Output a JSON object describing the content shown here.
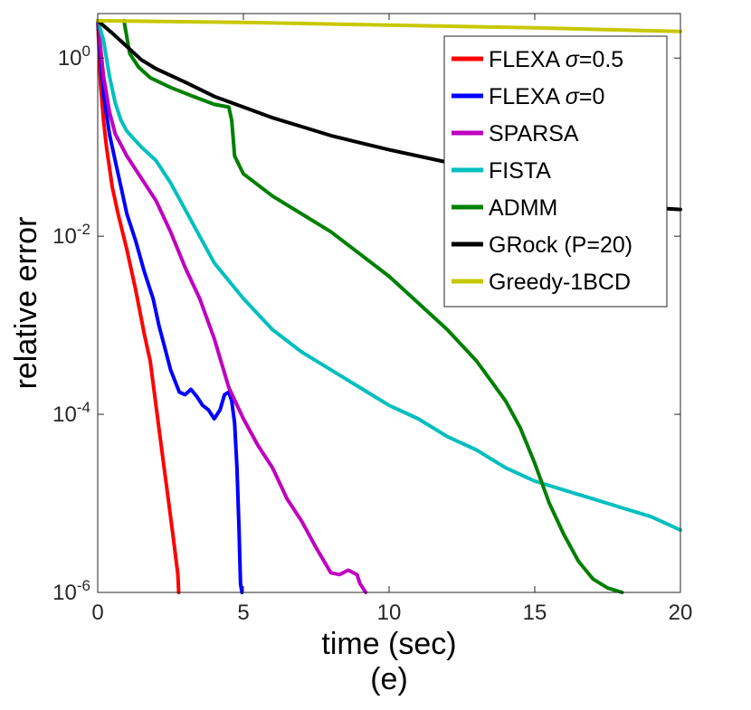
{
  "chart_data": {
    "type": "line",
    "subfigure_label": "(e)",
    "xlabel": "time (sec)",
    "ylabel": "relative error",
    "xlim": [
      0,
      20
    ],
    "ylim_log10": [
      -6,
      0.5
    ],
    "y_scale": "log",
    "x_ticks": [
      {
        "value": 0,
        "label": "0"
      },
      {
        "value": 5,
        "label": "5"
      },
      {
        "value": 10,
        "label": "10"
      },
      {
        "value": 15,
        "label": "15"
      },
      {
        "value": 20,
        "label": "20"
      }
    ],
    "y_ticks": [
      {
        "log10": 0,
        "base": "10",
        "exp": "0"
      },
      {
        "log10": -2,
        "base": "10",
        "exp": "-2"
      },
      {
        "log10": -4,
        "base": "10",
        "exp": "-4"
      },
      {
        "log10": -6,
        "base": "10",
        "exp": "-6"
      }
    ],
    "legend": {
      "position": "top-right"
    },
    "series": [
      {
        "name": "FLEXA σ=0.5",
        "name_prefix": "FLEXA ",
        "name_symbol": "σ",
        "name_suffix": "=0.5",
        "color": "#ff0000",
        "points": [
          [
            0,
            0.42
          ],
          [
            0.1,
            -0.3
          ],
          [
            0.2,
            -0.7
          ],
          [
            0.3,
            -1.0
          ],
          [
            0.5,
            -1.45
          ],
          [
            0.7,
            -1.75
          ],
          [
            1.0,
            -2.15
          ],
          [
            1.3,
            -2.6
          ],
          [
            1.6,
            -3.1
          ],
          [
            1.8,
            -3.4
          ],
          [
            2.0,
            -3.9
          ],
          [
            2.2,
            -4.4
          ],
          [
            2.4,
            -4.9
          ],
          [
            2.6,
            -5.4
          ],
          [
            2.75,
            -5.8
          ],
          [
            2.78,
            -6.0
          ]
        ]
      },
      {
        "name": "FLEXA σ=0",
        "name_prefix": "FLEXA ",
        "name_symbol": "σ",
        "name_suffix": "=0",
        "color": "#0000ff",
        "points": [
          [
            0,
            0.42
          ],
          [
            0.2,
            -0.4
          ],
          [
            0.4,
            -0.85
          ],
          [
            0.6,
            -1.15
          ],
          [
            0.8,
            -1.45
          ],
          [
            1.0,
            -1.75
          ],
          [
            1.3,
            -2.05
          ],
          [
            1.6,
            -2.4
          ],
          [
            1.9,
            -2.7
          ],
          [
            2.1,
            -3.0
          ],
          [
            2.3,
            -3.25
          ],
          [
            2.5,
            -3.5
          ],
          [
            2.8,
            -3.75
          ],
          [
            3.0,
            -3.78
          ],
          [
            3.2,
            -3.72
          ],
          [
            3.4,
            -3.8
          ],
          [
            3.6,
            -3.9
          ],
          [
            3.8,
            -3.95
          ],
          [
            4.0,
            -4.05
          ],
          [
            4.2,
            -3.95
          ],
          [
            4.35,
            -3.78
          ],
          [
            4.5,
            -3.75
          ],
          [
            4.6,
            -3.85
          ],
          [
            4.7,
            -4.1
          ],
          [
            4.78,
            -4.6
          ],
          [
            4.85,
            -5.3
          ],
          [
            4.9,
            -5.9
          ],
          [
            4.95,
            -6.0
          ]
        ]
      },
      {
        "name": "SPARSA",
        "name_prefix": "SPARSA",
        "name_symbol": "",
        "name_suffix": "",
        "color": "#bf00bf",
        "points": [
          [
            0,
            0.42
          ],
          [
            0.2,
            -0.2
          ],
          [
            0.4,
            -0.6
          ],
          [
            0.6,
            -0.85
          ],
          [
            1.0,
            -1.1
          ],
          [
            1.5,
            -1.35
          ],
          [
            2.0,
            -1.6
          ],
          [
            2.5,
            -1.95
          ],
          [
            3.0,
            -2.35
          ],
          [
            3.5,
            -2.7
          ],
          [
            4.0,
            -3.15
          ],
          [
            4.5,
            -3.7
          ],
          [
            5.0,
            -4.05
          ],
          [
            5.5,
            -4.35
          ],
          [
            6.0,
            -4.6
          ],
          [
            6.5,
            -4.95
          ],
          [
            7.0,
            -5.2
          ],
          [
            7.5,
            -5.5
          ],
          [
            8.0,
            -5.78
          ],
          [
            8.3,
            -5.8
          ],
          [
            8.6,
            -5.75
          ],
          [
            8.9,
            -5.8
          ],
          [
            9.0,
            -5.9
          ],
          [
            9.2,
            -6.0
          ]
        ]
      },
      {
        "name": "FISTA",
        "name_prefix": "FISTA",
        "name_symbol": "",
        "name_suffix": "",
        "color": "#00bfbf",
        "points": [
          [
            0,
            0.42
          ],
          [
            0.2,
            0.2
          ],
          [
            0.4,
            -0.2
          ],
          [
            0.6,
            -0.5
          ],
          [
            0.8,
            -0.7
          ],
          [
            1.0,
            -0.82
          ],
          [
            1.5,
            -1.0
          ],
          [
            2.0,
            -1.15
          ],
          [
            2.5,
            -1.4
          ],
          [
            3.0,
            -1.7
          ],
          [
            3.5,
            -2.0
          ],
          [
            4.0,
            -2.3
          ],
          [
            5.0,
            -2.7
          ],
          [
            6.0,
            -3.05
          ],
          [
            7.0,
            -3.3
          ],
          [
            8.0,
            -3.5
          ],
          [
            9.0,
            -3.7
          ],
          [
            10.0,
            -3.9
          ],
          [
            11.0,
            -4.05
          ],
          [
            12.0,
            -4.25
          ],
          [
            13.0,
            -4.4
          ],
          [
            14.0,
            -4.6
          ],
          [
            15.0,
            -4.75
          ],
          [
            16.0,
            -4.85
          ],
          [
            17.0,
            -4.95
          ],
          [
            18.0,
            -5.05
          ],
          [
            19.0,
            -5.15
          ],
          [
            20.0,
            -5.3
          ]
        ]
      },
      {
        "name": "ADMM",
        "name_prefix": "ADMM",
        "name_symbol": "",
        "name_suffix": "",
        "color": "#008000",
        "points": [
          [
            0.9,
            0.42
          ],
          [
            1.1,
            0.05
          ],
          [
            1.4,
            -0.1
          ],
          [
            1.8,
            -0.22
          ],
          [
            2.5,
            -0.33
          ],
          [
            3.2,
            -0.42
          ],
          [
            3.6,
            -0.47
          ],
          [
            4.0,
            -0.52
          ],
          [
            4.5,
            -0.55
          ],
          [
            4.6,
            -0.7
          ],
          [
            4.7,
            -1.1
          ],
          [
            5.0,
            -1.3
          ],
          [
            6.0,
            -1.55
          ],
          [
            7.0,
            -1.75
          ],
          [
            8.0,
            -1.95
          ],
          [
            9.0,
            -2.2
          ],
          [
            10.0,
            -2.45
          ],
          [
            11.0,
            -2.75
          ],
          [
            12.0,
            -3.05
          ],
          [
            13.0,
            -3.4
          ],
          [
            14.0,
            -3.85
          ],
          [
            14.5,
            -4.15
          ],
          [
            15.0,
            -4.55
          ],
          [
            15.5,
            -5.0
          ],
          [
            16.0,
            -5.35
          ],
          [
            16.5,
            -5.65
          ],
          [
            17.0,
            -5.85
          ],
          [
            17.5,
            -5.95
          ],
          [
            18.0,
            -6.0
          ]
        ]
      },
      {
        "name": "GRock (P=20)",
        "name_prefix": "GRock (P=20)",
        "name_symbol": "",
        "name_suffix": "",
        "color": "#000000",
        "points": [
          [
            0,
            0.42
          ],
          [
            0.5,
            0.28
          ],
          [
            1.0,
            0.13
          ],
          [
            1.5,
            -0.02
          ],
          [
            2.0,
            -0.12
          ],
          [
            3.0,
            -0.27
          ],
          [
            4.0,
            -0.43
          ],
          [
            5.0,
            -0.55
          ],
          [
            6.0,
            -0.67
          ],
          [
            7.0,
            -0.77
          ],
          [
            8.0,
            -0.87
          ],
          [
            9.0,
            -0.95
          ],
          [
            10.0,
            -1.03
          ],
          [
            11.0,
            -1.1
          ],
          [
            12.0,
            -1.17
          ],
          [
            13.0,
            -1.27
          ],
          [
            14.0,
            -1.35
          ],
          [
            15.0,
            -1.45
          ],
          [
            16.0,
            -1.53
          ],
          [
            17.0,
            -1.6
          ],
          [
            18.0,
            -1.65
          ],
          [
            19.0,
            -1.68
          ],
          [
            20.0,
            -1.7
          ]
        ]
      },
      {
        "name": "Greedy-1BCD",
        "name_prefix": "Greedy-1BCD",
        "name_symbol": "",
        "name_suffix": "",
        "color": "#c8c800",
        "points": [
          [
            0,
            0.42
          ],
          [
            5,
            0.4
          ],
          [
            10,
            0.37
          ],
          [
            15,
            0.34
          ],
          [
            20,
            0.3
          ]
        ]
      }
    ]
  }
}
